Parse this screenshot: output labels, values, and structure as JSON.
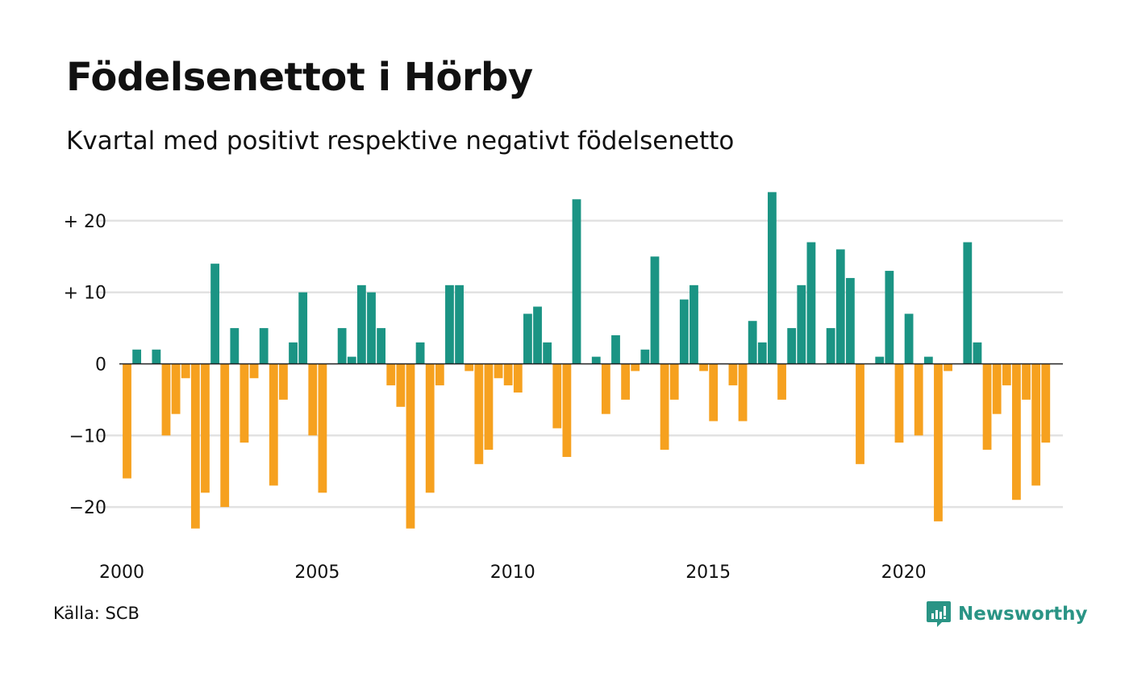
{
  "header": {
    "title": "Födelsenettot i Hörby",
    "subtitle": "Kvartal med positivt respektive negativt födelsenetto"
  },
  "footer": {
    "source": "Källa: SCB",
    "brand": "Newsworthy"
  },
  "colors": {
    "positive": "#1b9484",
    "negative": "#f6a11f",
    "grid": "#e2e2e2",
    "axis": "#222222",
    "brand": "#2a9485"
  },
  "chart_data": {
    "type": "bar",
    "title": "Födelsenettot i Hörby",
    "subtitle": "Kvartal med positivt respektive negativt födelsenetto",
    "xlabel": "",
    "ylabel": "",
    "x_start": "2000-Q1",
    "ylim": [
      -25,
      24
    ],
    "y_ticks": [
      20,
      10,
      0,
      -10,
      -20
    ],
    "y_tick_labels": [
      "+ 20",
      "+ 10",
      "0",
      "−10",
      "−20"
    ],
    "x_ticks": [
      "2000",
      "2005",
      "2010",
      "2015",
      "2020"
    ],
    "grid": true,
    "legend": "none",
    "values": [
      -16,
      2,
      0,
      2,
      -10,
      -7,
      -2,
      -23,
      -18,
      14,
      -20,
      5,
      -11,
      -2,
      5,
      -17,
      -5,
      3,
      10,
      -10,
      -18,
      0,
      5,
      1,
      11,
      10,
      5,
      -3,
      -6,
      -23,
      3,
      -18,
      -3,
      11,
      11,
      -1,
      -14,
      -12,
      -2,
      -3,
      -4,
      7,
      8,
      3,
      -9,
      -13,
      23,
      0,
      1,
      -7,
      4,
      -5,
      -1,
      2,
      15,
      -12,
      -5,
      9,
      11,
      -1,
      -8,
      0,
      -3,
      -8,
      6,
      3,
      24,
      -5,
      5,
      11,
      17,
      0,
      5,
      16,
      12,
      -14,
      0,
      1,
      13,
      -11,
      7,
      -10,
      1,
      -22,
      -1,
      0,
      17,
      3,
      -12,
      -7,
      -3,
      -19,
      -5,
      -17,
      -11
    ]
  }
}
